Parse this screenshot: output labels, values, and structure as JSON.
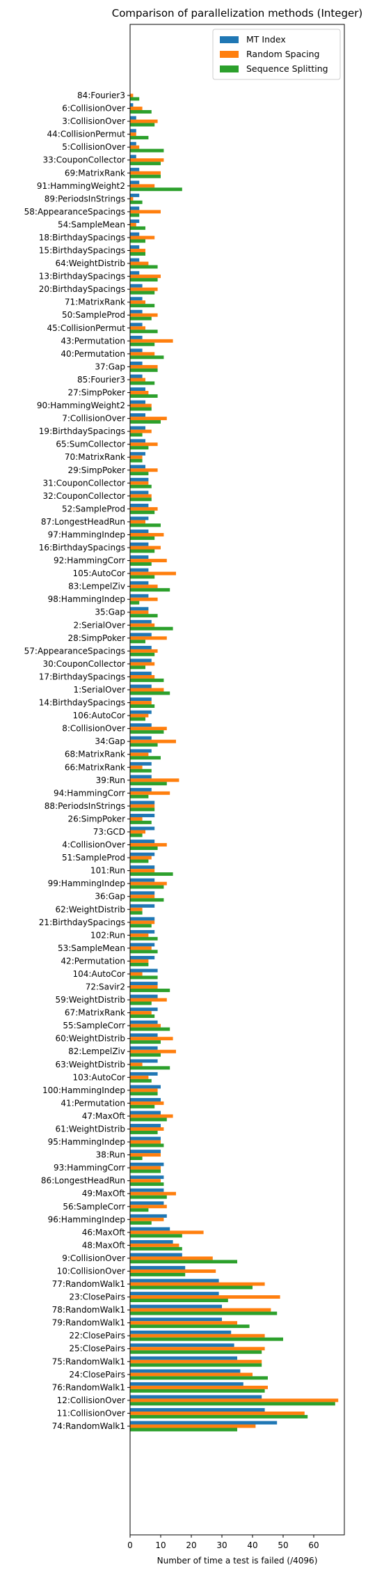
{
  "chart_data": {
    "type": "bar",
    "orientation": "horizontal",
    "title": "Comparison of parallelization methods (Integer)",
    "xlabel": "Number of time a test is failed (/4096)",
    "ylabel": "",
    "xlim": [
      0,
      70
    ],
    "xticks": [
      0,
      10,
      20,
      30,
      40,
      50,
      60
    ],
    "grid": false,
    "legend_position": "top-right",
    "colors": [
      "#1f77b4",
      "#ff7f0e",
      "#2ca02c"
    ],
    "categories": [
      "84:Fourier3",
      "6:CollisionOver",
      "3:CollisionOver",
      "44:CollisionPermut",
      "5:CollisionOver",
      "33:CouponCollector",
      "69:MatrixRank",
      "91:HammingWeight2",
      "89:PeriodsInStrings",
      "58:AppearanceSpacings",
      "54:SampleMean",
      "18:BirthdaySpacings",
      "15:BirthdaySpacings",
      "64:WeightDistrib",
      "13:BirthdaySpacings",
      "20:BirthdaySpacings",
      "71:MatrixRank",
      "50:SampleProd",
      "45:CollisionPermut",
      "43:Permutation",
      "40:Permutation",
      "37:Gap",
      "85:Fourier3",
      "27:SimpPoker",
      "90:HammingWeight2",
      "7:CollisionOver",
      "19:BirthdaySpacings",
      "65:SumCollector",
      "70:MatrixRank",
      "29:SimpPoker",
      "31:CouponCollector",
      "32:CouponCollector",
      "52:SampleProd",
      "87:LongestHeadRun",
      "97:HammingIndep",
      "16:BirthdaySpacings",
      "92:HammingCorr",
      "105:AutoCor",
      "83:LempelZiv",
      "98:HammingIndep",
      "35:Gap",
      "2:SerialOver",
      "28:SimpPoker",
      "57:AppearanceSpacings",
      "30:CouponCollector",
      "17:BirthdaySpacings",
      "1:SerialOver",
      "14:BirthdaySpacings",
      "106:AutoCor",
      "8:CollisionOver",
      "34:Gap",
      "68:MatrixRank",
      "66:MatrixRank",
      "39:Run",
      "94:HammingCorr",
      "88:PeriodsInStrings",
      "26:SimpPoker",
      "73:GCD",
      "4:CollisionOver",
      "51:SampleProd",
      "101:Run",
      "99:HammingIndep",
      "36:Gap",
      "62:WeightDistrib",
      "21:BirthdaySpacings",
      "102:Run",
      "53:SampleMean",
      "42:Permutation",
      "104:AutoCor",
      "72:Savir2",
      "59:WeightDistrib",
      "67:MatrixRank",
      "55:SampleCorr",
      "60:WeightDistrib",
      "82:LempelZiv",
      "63:WeightDistrib",
      "103:AutoCor",
      "100:HammingIndep",
      "41:Permutation",
      "47:MaxOft",
      "61:WeightDistrib",
      "95:HammingIndep",
      "38:Run",
      "93:HammingCorr",
      "86:LongestHeadRun",
      "49:MaxOft",
      "56:SampleCorr",
      "96:HammingIndep",
      "46:MaxOft",
      "48:MaxOft",
      "9:CollisionOver",
      "10:CollisionOver",
      "77:RandomWalk1",
      "23:ClosePairs",
      "78:RandomWalk1",
      "79:RandomWalk1",
      "22:ClosePairs",
      "25:ClosePairs",
      "75:RandomWalk1",
      "24:ClosePairs",
      "76:RandomWalk1",
      "12:CollisionOver",
      "11:CollisionOver",
      "74:RandomWalk1"
    ],
    "series": [
      {
        "name": "MT Index",
        "values": [
          0,
          1,
          2,
          2,
          2,
          2,
          3,
          3,
          3,
          3,
          3,
          3,
          3,
          3,
          3,
          4,
          4,
          4,
          4,
          4,
          4,
          4,
          4,
          5,
          5,
          5,
          5,
          5,
          5,
          5,
          6,
          6,
          6,
          6,
          6,
          6,
          6,
          6,
          6,
          6,
          6,
          7,
          7,
          7,
          7,
          7,
          7,
          7,
          7,
          7,
          7,
          7,
          7,
          7,
          7,
          8,
          8,
          8,
          8,
          8,
          8,
          8,
          8,
          8,
          8,
          8,
          8,
          8,
          9,
          9,
          9,
          9,
          9,
          9,
          9,
          9,
          9,
          10,
          10,
          10,
          10,
          10,
          10,
          11,
          11,
          11,
          11,
          12,
          13,
          14,
          17,
          18,
          29,
          29,
          30,
          30,
          33,
          34,
          35,
          36,
          37,
          43,
          44,
          48
        ]
      },
      {
        "name": "Random Spacing",
        "values": [
          1,
          4,
          9,
          2,
          3,
          11,
          10,
          8,
          1,
          10,
          2,
          8,
          5,
          6,
          10,
          9,
          5,
          9,
          5,
          14,
          8,
          9,
          5,
          6,
          7,
          12,
          7,
          9,
          4,
          9,
          6,
          7,
          9,
          5,
          11,
          10,
          12,
          15,
          9,
          9,
          6,
          8,
          12,
          9,
          8,
          8,
          11,
          7,
          6,
          12,
          15,
          6,
          4,
          16,
          13,
          8,
          4,
          5,
          12,
          7,
          8,
          12,
          8,
          4,
          8,
          6,
          7,
          6,
          4,
          9,
          12,
          7,
          10,
          14,
          15,
          4,
          6,
          9,
          11,
          14,
          11,
          10,
          10,
          10,
          10,
          15,
          12,
          11,
          24,
          16,
          27,
          28,
          44,
          49,
          46,
          35,
          44,
          44,
          43,
          40,
          45,
          68,
          57,
          41
        ]
      },
      {
        "name": "Sequence Splitting",
        "values": [
          3,
          7,
          8,
          6,
          11,
          10,
          10,
          17,
          4,
          3,
          5,
          5,
          5,
          9,
          9,
          8,
          8,
          7,
          9,
          8,
          11,
          9,
          8,
          9,
          7,
          10,
          4,
          6,
          4,
          6,
          7,
          7,
          8,
          10,
          8,
          8,
          7,
          8,
          13,
          3,
          9,
          14,
          5,
          8,
          5,
          11,
          13,
          8,
          5,
          11,
          9,
          10,
          7,
          12,
          6,
          8,
          7,
          4,
          9,
          6,
          14,
          11,
          11,
          4,
          7,
          9,
          9,
          6,
          9,
          13,
          7,
          8,
          13,
          10,
          10,
          13,
          7,
          9,
          8,
          12,
          9,
          11,
          4,
          10,
          11,
          12,
          6,
          7,
          17,
          17,
          35,
          18,
          40,
          32,
          48,
          39,
          50,
          43,
          43,
          45,
          44,
          67,
          58,
          35
        ]
      }
    ]
  }
}
